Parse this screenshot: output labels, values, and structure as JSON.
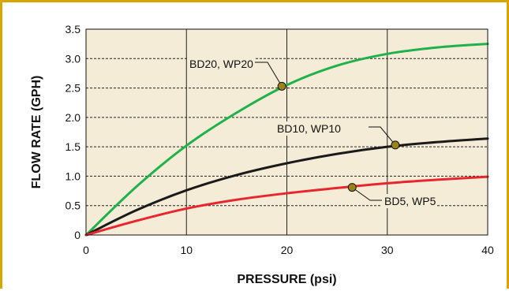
{
  "chart_data": {
    "type": "line",
    "xlabel": "PRESSURE (psi)",
    "ylabel": "FLOW RATE (GPH)",
    "xlim": [
      0,
      40
    ],
    "ylim": [
      0,
      3.5
    ],
    "xticks": [
      "0",
      "10",
      "20",
      "30",
      "40"
    ],
    "yticks": [
      "0",
      "0.5",
      "1.0",
      "1.5",
      "2.0",
      "2.5",
      "3.0",
      "3.5"
    ],
    "grid": {
      "x": "solid",
      "y": "dashed"
    },
    "plot_background": "#f4ecd6",
    "frame_color": "#d9a400",
    "series": [
      {
        "color": "#1fb24a",
        "x": [
          0,
          5,
          10,
          15,
          20,
          25,
          30,
          35,
          40
        ],
        "y": [
          0,
          0.82,
          1.52,
          2.08,
          2.55,
          2.88,
          3.08,
          3.19,
          3.25
        ]
      },
      {
        "color": "#1a1a1a",
        "x": [
          0,
          5,
          10,
          15,
          20,
          25,
          30,
          35,
          40
        ],
        "y": [
          0,
          0.42,
          0.76,
          1.02,
          1.22,
          1.38,
          1.5,
          1.58,
          1.64
        ]
      },
      {
        "color": "#e8262e",
        "x": [
          0,
          5,
          10,
          15,
          20,
          25,
          30,
          35,
          40
        ],
        "y": [
          0,
          0.24,
          0.45,
          0.6,
          0.71,
          0.8,
          0.88,
          0.94,
          0.99
        ]
      }
    ],
    "annotations": [
      {
        "text": "BD20, WP20",
        "point": [
          19.5,
          2.53
        ],
        "point_color": "#9a8416"
      },
      {
        "text": "BD10, WP10",
        "point": [
          30.8,
          1.53
        ],
        "point_color": "#9a8416"
      },
      {
        "text": "BD5, WP5",
        "point": [
          26.5,
          0.81
        ],
        "point_color": "#9a8416"
      }
    ]
  }
}
